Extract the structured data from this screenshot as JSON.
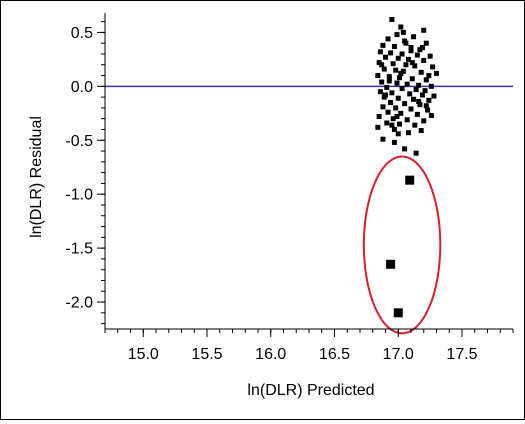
{
  "chart_data": {
    "type": "scatter",
    "title": "",
    "xlabel": "ln(DLR) Predicted",
    "ylabel": "ln(DLR) Residual",
    "xlim": [
      14.7,
      17.9
    ],
    "ylim": [
      -2.25,
      0.68
    ],
    "x_ticks": [
      {
        "value": 15.0,
        "label": "15.0"
      },
      {
        "value": 15.5,
        "label": "15.5"
      },
      {
        "value": 16.0,
        "label": "16.0"
      },
      {
        "value": 16.5,
        "label": "16.5"
      },
      {
        "value": 17.0,
        "label": "17.0"
      },
      {
        "value": 17.5,
        "label": "17.5"
      }
    ],
    "y_ticks": [
      {
        "value": 0.5,
        "label": "0.5"
      },
      {
        "value": 0.0,
        "label": "0.0"
      },
      {
        "value": -0.5,
        "label": "-0.5"
      },
      {
        "value": -1.0,
        "label": "-1.0"
      },
      {
        "value": -1.5,
        "label": "-1.5"
      },
      {
        "value": -2.0,
        "label": "-2.0"
      }
    ],
    "x_minor_step": 0.1,
    "y_minor_step": 0.1,
    "reference_line": {
      "y": 0.0,
      "color": "#3b2bb5"
    },
    "grid": false,
    "series": [
      {
        "marker": "small-square",
        "color": "#000000",
        "points": [
          [
            16.95,
            0.62
          ],
          [
            17.02,
            0.55
          ],
          [
            17.2,
            0.52
          ],
          [
            16.99,
            0.48
          ],
          [
            17.12,
            0.46
          ],
          [
            16.92,
            0.44
          ],
          [
            17.05,
            0.42
          ],
          [
            17.22,
            0.4
          ],
          [
            16.88,
            0.38
          ],
          [
            16.97,
            0.37
          ],
          [
            17.1,
            0.36
          ],
          [
            17.17,
            0.34
          ],
          [
            16.86,
            0.32
          ],
          [
            16.94,
            0.31
          ],
          [
            17.03,
            0.3
          ],
          [
            17.15,
            0.29
          ],
          [
            17.25,
            0.28
          ],
          [
            16.9,
            0.27
          ],
          [
            17.0,
            0.26
          ],
          [
            17.08,
            0.25
          ],
          [
            17.2,
            0.24
          ],
          [
            16.85,
            0.22
          ],
          [
            16.96,
            0.21
          ],
          [
            17.06,
            0.2
          ],
          [
            17.13,
            0.19
          ],
          [
            17.27,
            0.18
          ],
          [
            16.89,
            0.16
          ],
          [
            16.98,
            0.15
          ],
          [
            17.04,
            0.14
          ],
          [
            17.18,
            0.13
          ],
          [
            17.3,
            0.12
          ],
          [
            16.84,
            0.1
          ],
          [
            16.93,
            0.09
          ],
          [
            17.01,
            0.08
          ],
          [
            17.11,
            0.07
          ],
          [
            17.22,
            0.06
          ],
          [
            16.87,
            0.04
          ],
          [
            16.99,
            0.03
          ],
          [
            17.07,
            0.02
          ],
          [
            17.16,
            0.01
          ],
          [
            17.26,
            0.0
          ],
          [
            16.91,
            -0.01
          ],
          [
            17.03,
            -0.02
          ],
          [
            17.14,
            -0.03
          ],
          [
            17.21,
            -0.04
          ],
          [
            16.86,
            -0.05
          ],
          [
            16.95,
            -0.06
          ],
          [
            17.09,
            -0.07
          ],
          [
            17.19,
            -0.08
          ],
          [
            17.28,
            -0.09
          ],
          [
            16.89,
            -0.1
          ],
          [
            17.0,
            -0.11
          ],
          [
            17.12,
            -0.12
          ],
          [
            17.24,
            -0.13
          ],
          [
            16.94,
            -0.15
          ],
          [
            17.05,
            -0.16
          ],
          [
            17.17,
            -0.17
          ],
          [
            16.88,
            -0.19
          ],
          [
            16.98,
            -0.2
          ],
          [
            17.1,
            -0.21
          ],
          [
            17.23,
            -0.22
          ],
          [
            16.92,
            -0.24
          ],
          [
            17.02,
            -0.25
          ],
          [
            17.15,
            -0.26
          ],
          [
            17.26,
            -0.27
          ],
          [
            16.85,
            -0.28
          ],
          [
            16.96,
            -0.3
          ],
          [
            17.07,
            -0.31
          ],
          [
            17.2,
            -0.32
          ],
          [
            16.91,
            -0.34
          ],
          [
            17.01,
            -0.35
          ],
          [
            17.13,
            -0.36
          ],
          [
            16.84,
            -0.38
          ],
          [
            16.97,
            -0.4
          ],
          [
            17.18,
            -0.41
          ],
          [
            17.08,
            -0.43
          ],
          [
            16.88,
            -0.49
          ],
          [
            16.97,
            -0.52
          ],
          [
            17.05,
            -0.58
          ],
          [
            17.14,
            -0.62
          ],
          [
            17.0,
            -0.44
          ],
          [
            17.22,
            -0.18
          ],
          [
            16.93,
            0.05
          ],
          [
            17.1,
            0.33
          ],
          [
            17.04,
            0.5
          ],
          [
            16.87,
            0.2
          ],
          [
            17.16,
            -0.14
          ],
          [
            17.24,
            0.1
          ],
          [
            16.9,
            -0.08
          ],
          [
            17.06,
            0.4
          ],
          [
            16.99,
            -0.28
          ],
          [
            17.11,
            0.22
          ],
          [
            17.19,
            0.36
          ],
          [
            16.95,
            -0.36
          ],
          [
            17.02,
            0.12
          ]
        ]
      },
      {
        "marker": "large-square",
        "color": "#000000",
        "points": [
          [
            17.09,
            -0.87
          ],
          [
            16.94,
            -1.65
          ],
          [
            17.0,
            -2.1
          ]
        ]
      }
    ],
    "annotation": {
      "shape": "ellipse",
      "color": "#d8202a",
      "center": [
        17.03,
        -1.47
      ],
      "radius_x": 0.3,
      "radius_y": 0.82
    }
  }
}
